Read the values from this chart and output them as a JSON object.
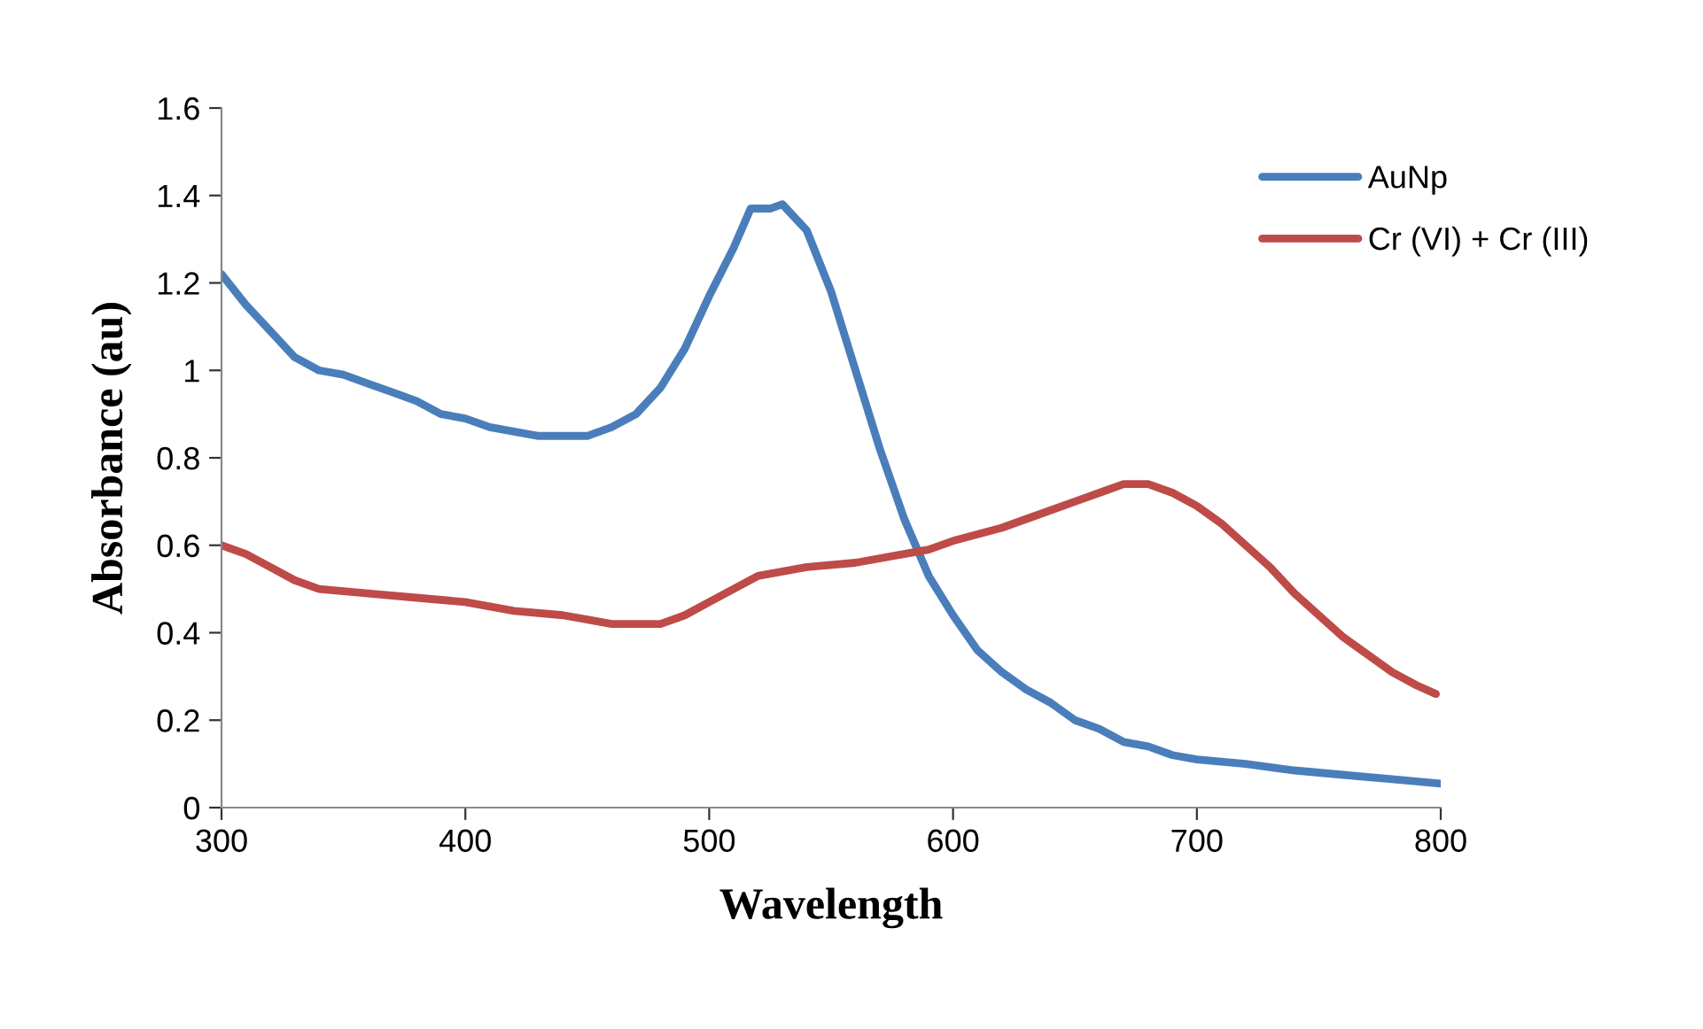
{
  "chart_data": {
    "type": "line",
    "xlabel": "Wavelength",
    "ylabel": "Absorbance (au)",
    "xlim": [
      300,
      800
    ],
    "xticks": [
      300,
      400,
      500,
      600,
      700,
      800
    ],
    "ylim": [
      0,
      1.6
    ],
    "yticks": [
      0,
      0.2,
      0.4,
      0.6,
      0.8,
      1,
      1.2,
      1.4,
      1.6
    ],
    "grid": false,
    "legend": "right",
    "marker": "none",
    "line_style": "solid",
    "series": [
      {
        "name": "AuNp",
        "color": "#4a7ebb",
        "x": [
          300,
          310,
          320,
          330,
          340,
          350,
          360,
          370,
          380,
          390,
          400,
          410,
          420,
          430,
          440,
          450,
          460,
          470,
          480,
          490,
          500,
          510,
          517,
          525,
          530,
          540,
          550,
          560,
          570,
          580,
          590,
          600,
          610,
          620,
          630,
          640,
          650,
          660,
          670,
          680,
          690,
          700,
          720,
          740,
          760,
          780,
          800
        ],
        "values": [
          1.22,
          1.15,
          1.09,
          1.03,
          1.0,
          0.99,
          0.97,
          0.95,
          0.93,
          0.9,
          0.89,
          0.87,
          0.86,
          0.85,
          0.85,
          0.85,
          0.87,
          0.9,
          0.96,
          1.05,
          1.17,
          1.28,
          1.37,
          1.37,
          1.38,
          1.32,
          1.18,
          1.0,
          0.82,
          0.66,
          0.53,
          0.44,
          0.36,
          0.31,
          0.27,
          0.24,
          0.2,
          0.18,
          0.15,
          0.14,
          0.12,
          0.11,
          0.1,
          0.085,
          0.075,
          0.065,
          0.055
        ]
      },
      {
        "name": "Cr (VI) + Cr (III)",
        "color": "#be4b48",
        "x": [
          300,
          310,
          320,
          330,
          340,
          360,
          380,
          400,
          420,
          440,
          450,
          460,
          480,
          490,
          500,
          510,
          520,
          530,
          540,
          560,
          580,
          590,
          600,
          620,
          640,
          650,
          660,
          670,
          680,
          690,
          700,
          710,
          720,
          730,
          740,
          750,
          760,
          770,
          780,
          790,
          798
        ],
        "values": [
          0.6,
          0.58,
          0.55,
          0.52,
          0.5,
          0.49,
          0.48,
          0.47,
          0.45,
          0.44,
          0.43,
          0.42,
          0.42,
          0.44,
          0.47,
          0.5,
          0.53,
          0.54,
          0.55,
          0.56,
          0.58,
          0.59,
          0.61,
          0.64,
          0.68,
          0.7,
          0.72,
          0.74,
          0.74,
          0.72,
          0.69,
          0.65,
          0.6,
          0.55,
          0.49,
          0.44,
          0.39,
          0.35,
          0.31,
          0.28,
          0.26
        ]
      }
    ]
  }
}
